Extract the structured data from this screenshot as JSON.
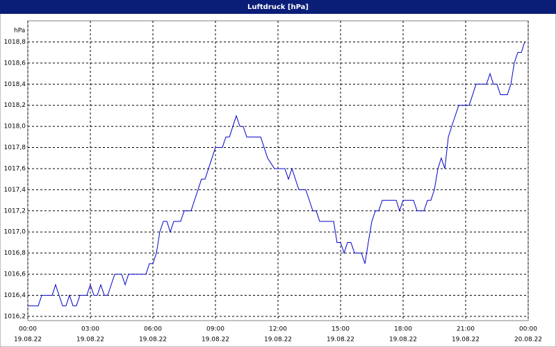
{
  "chart_data": {
    "type": "line",
    "title": "Luftdruck [hPa]",
    "y_label": "hPa",
    "x": [
      0,
      0.5,
      0.67,
      1.17,
      1.33,
      1.5,
      1.67,
      1.83,
      2,
      2.17,
      2.33,
      2.5,
      2.83,
      3,
      3.17,
      3.33,
      3.5,
      3.67,
      3.83,
      4.17,
      4.5,
      4.67,
      4.83,
      5.67,
      5.83,
      6,
      6.17,
      6.33,
      6.5,
      6.67,
      6.83,
      7,
      7.33,
      7.5,
      7.83,
      8.33,
      8.5,
      9,
      9.33,
      9.5,
      9.67,
      10,
      10.17,
      10.33,
      10.5,
      11.17,
      11.5,
      11.83,
      12.33,
      12.5,
      12.67,
      13,
      13.33,
      13.67,
      13.83,
      14,
      14.67,
      14.83,
      15,
      15.17,
      15.33,
      15.5,
      15.67,
      16,
      16.17,
      16.33,
      16.5,
      16.67,
      16.83,
      17,
      17.67,
      17.83,
      18,
      18.5,
      18.67,
      19,
      19.17,
      19.33,
      19.5,
      19.67,
      19.83,
      20,
      20.17,
      20.33,
      20.5,
      20.67,
      21.17,
      21.5,
      22,
      22.17,
      22.33,
      22.5,
      22.67,
      23,
      23.17,
      23.33,
      23.5,
      23.67,
      23.83
    ],
    "values": [
      1016.3,
      1016.3,
      1016.4,
      1016.4,
      1016.5,
      1016.4,
      1016.3,
      1016.3,
      1016.4,
      1016.3,
      1016.3,
      1016.4,
      1016.4,
      1016.5,
      1016.4,
      1016.4,
      1016.5,
      1016.4,
      1016.4,
      1016.6,
      1016.6,
      1016.5,
      1016.6,
      1016.6,
      1016.7,
      1016.7,
      1016.8,
      1017.0,
      1017.1,
      1017.1,
      1017.0,
      1017.1,
      1017.1,
      1017.2,
      1017.2,
      1017.5,
      1017.5,
      1017.8,
      1017.8,
      1017.9,
      1017.9,
      1018.1,
      1018.0,
      1018.0,
      1017.9,
      1017.9,
      1017.7,
      1017.6,
      1017.6,
      1017.5,
      1017.6,
      1017.4,
      1017.4,
      1017.2,
      1017.2,
      1017.1,
      1017.1,
      1016.9,
      1016.9,
      1016.8,
      1016.9,
      1016.9,
      1016.8,
      1016.8,
      1016.7,
      1016.9,
      1017.1,
      1017.2,
      1017.2,
      1017.3,
      1017.3,
      1017.2,
      1017.3,
      1017.3,
      1017.2,
      1017.2,
      1017.3,
      1017.3,
      1017.4,
      1017.6,
      1017.7,
      1017.6,
      1017.9,
      1018.0,
      1018.1,
      1018.2,
      1018.2,
      1018.4,
      1018.4,
      1018.5,
      1018.4,
      1018.4,
      1018.3,
      1018.3,
      1018.4,
      1018.6,
      1018.7,
      1018.7,
      1018.8
    ],
    "color": "#0000c8",
    "xlim": [
      0,
      24
    ],
    "xticks": [
      {
        "value": 0,
        "label": "00:00",
        "date": "19.08.22"
      },
      {
        "value": 3,
        "label": "03:00",
        "date": "19.08.22"
      },
      {
        "value": 6,
        "label": "06:00",
        "date": "19.08.22"
      },
      {
        "value": 9,
        "label": "09:00",
        "date": "19.08.22"
      },
      {
        "value": 12,
        "label": "12:00",
        "date": "19.08.22"
      },
      {
        "value": 15,
        "label": "15:00",
        "date": "19.08.22"
      },
      {
        "value": 18,
        "label": "18:00",
        "date": "19.08.22"
      },
      {
        "value": 21,
        "label": "21:00",
        "date": "19.08.22"
      },
      {
        "value": 24,
        "label": "00:00",
        "date": "20.08.22"
      }
    ],
    "ylim": [
      1016.16,
      1019.0
    ],
    "yticks": [
      {
        "value": 1016.2,
        "label": "1016,2"
      },
      {
        "value": 1016.4,
        "label": "1016,4"
      },
      {
        "value": 1016.6,
        "label": "1016,6"
      },
      {
        "value": 1016.8,
        "label": "1016,8"
      },
      {
        "value": 1017.0,
        "label": "1017,0"
      },
      {
        "value": 1017.2,
        "label": "1017,2"
      },
      {
        "value": 1017.4,
        "label": "1017,4"
      },
      {
        "value": 1017.6,
        "label": "1017,6"
      },
      {
        "value": 1017.8,
        "label": "1017,8"
      },
      {
        "value": 1018.0,
        "label": "1018,0"
      },
      {
        "value": 1018.2,
        "label": "1018,2"
      },
      {
        "value": 1018.4,
        "label": "1018,4"
      },
      {
        "value": 1018.6,
        "label": "1018,6"
      },
      {
        "value": 1018.8,
        "label": "1018,8"
      }
    ],
    "grid": true
  }
}
